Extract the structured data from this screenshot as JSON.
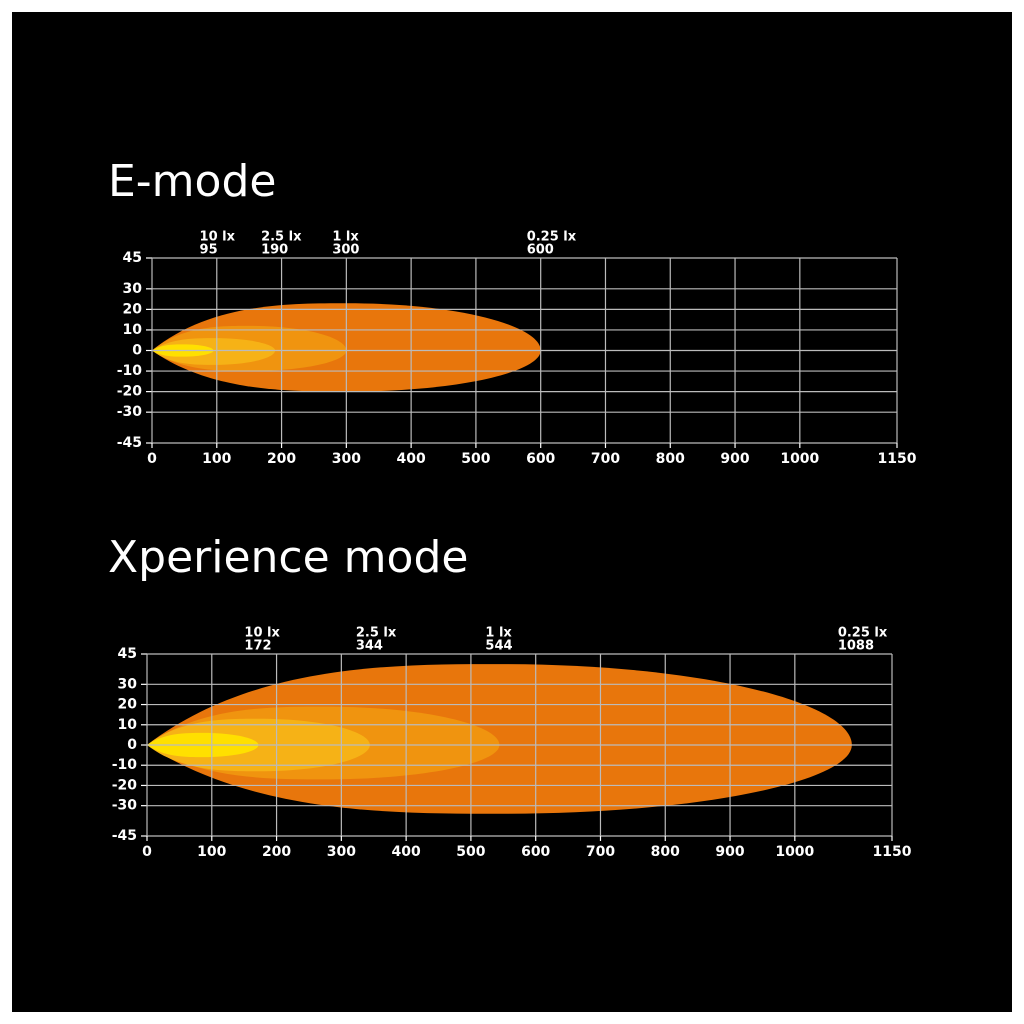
{
  "chart_data": [
    {
      "type": "isolux",
      "title": "E-mode",
      "xlim": [
        0,
        1150
      ],
      "ylim": [
        -45,
        45
      ],
      "xticks": [
        0,
        100,
        200,
        300,
        400,
        500,
        600,
        700,
        800,
        900,
        1000,
        1150
      ],
      "yticks": [
        45,
        30,
        20,
        10,
        0,
        -10,
        -20,
        -30,
        -45
      ],
      "grid": true,
      "contours": [
        {
          "name": "0.25 lx",
          "reach": 600,
          "upper": 23,
          "lower": -20,
          "color": "#e8760c"
        },
        {
          "name": "1 lx",
          "reach": 300,
          "upper": 12,
          "lower": -10,
          "color": "#f0940f"
        },
        {
          "name": "2.5 lx",
          "reach": 190,
          "upper": 6,
          "lower": -7,
          "color": "#f6b216"
        },
        {
          "name": "10 lx",
          "reach": 95,
          "upper": 3,
          "lower": -3,
          "color": "#ffe000"
        }
      ]
    },
    {
      "type": "isolux",
      "title": "Xperience mode",
      "xlim": [
        0,
        1150
      ],
      "ylim": [
        -45,
        45
      ],
      "xticks": [
        0,
        100,
        200,
        300,
        400,
        500,
        600,
        700,
        800,
        900,
        1000,
        1150
      ],
      "yticks": [
        45,
        30,
        20,
        10,
        0,
        -10,
        -20,
        -30,
        -45
      ],
      "grid": true,
      "contours": [
        {
          "name": "0.25 lx",
          "reach": 1088,
          "upper": 40,
          "lower": -34,
          "color": "#e8760c"
        },
        {
          "name": "1 lx",
          "reach": 544,
          "upper": 19,
          "lower": -17,
          "color": "#f0940f"
        },
        {
          "name": "2.5 lx",
          "reach": 344,
          "upper": 13,
          "lower": -13,
          "color": "#f6b216"
        },
        {
          "name": "10 lx",
          "reach": 172,
          "upper": 6,
          "lower": -6,
          "color": "#ffe000"
        }
      ]
    }
  ]
}
